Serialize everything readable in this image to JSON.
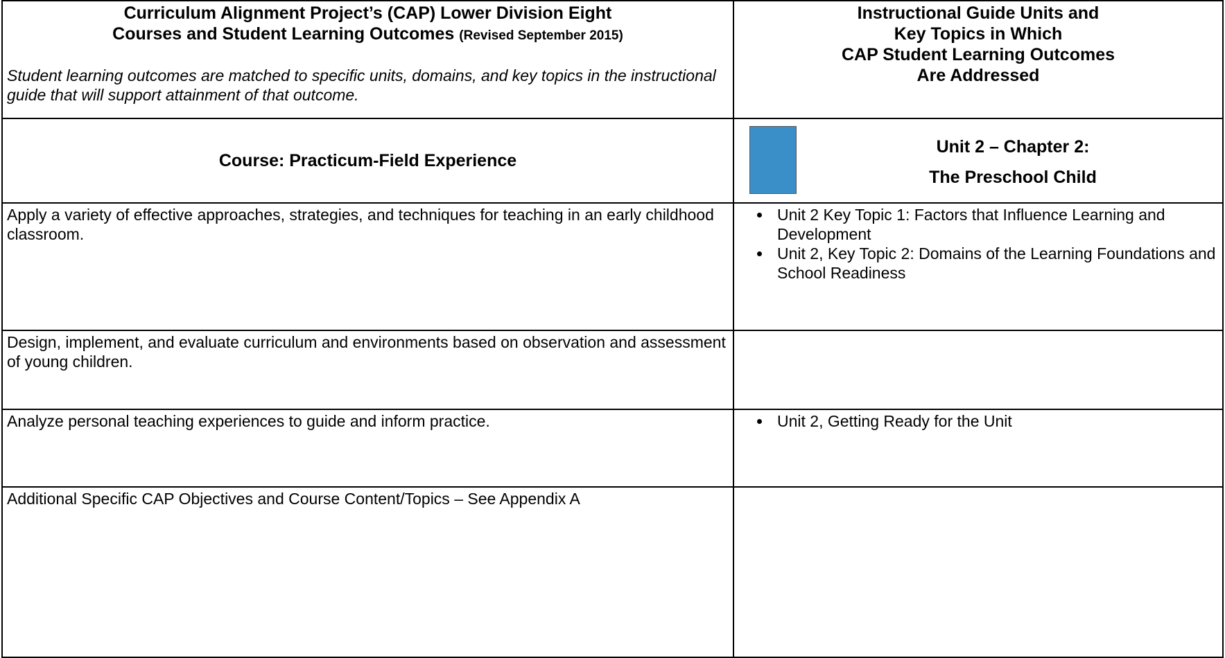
{
  "header": {
    "title_line1": "Curriculum Alignment Project’s (CAP) Lower Division Eight",
    "title_line2": "Courses and Student Learning Outcomes",
    "revised": "(Revised September 2015)",
    "note": "Student learning outcomes are matched to specific units, domains, and key topics in the instructional guide that will support attainment of that outcome.",
    "right_title": [
      "Instructional Guide Units and",
      "Key Topics in Which",
      "CAP Student Learning Outcomes",
      "Are Addressed"
    ]
  },
  "course": {
    "label": "Course:  Practicum-Field Experience",
    "unit_line1": "Unit 2 – Chapter 2:",
    "unit_line2": "The Preschool Child"
  },
  "rows": [
    {
      "outcome": "Apply a variety of effective approaches, strategies, and techniques for teaching in an early childhood classroom.",
      "topics": [
        "Unit 2 Key Topic 1: Factors that Influence Learning and Development",
        "Unit 2, Key Topic 2: Domains of the Learning Foundations and School Readiness"
      ]
    },
    {
      "outcome": "Design, implement, and evaluate curriculum and environments based on observation and assessment of young children.",
      "topics": []
    },
    {
      "outcome": "Analyze personal teaching experiences to guide and inform practice.",
      "topics": [
        "Unit 2, Getting Ready for the Unit"
      ]
    },
    {
      "outcome": "Additional Specific CAP Objectives and Course Content/Topics – See Appendix A",
      "topics": []
    }
  ]
}
